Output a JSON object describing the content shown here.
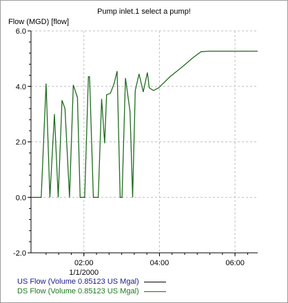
{
  "chart_data": {
    "type": "line",
    "title": "Pump inlet.1 select a pump!",
    "ylabel": "Flow (MGD) [flow]",
    "xlabel": "",
    "ylim": [
      -2.0,
      6.0
    ],
    "yticks": [
      -2.0,
      0.0,
      2.0,
      4.0,
      6.0
    ],
    "ytick_labels": [
      "-2.0",
      "0.0",
      "2.0",
      "4.0",
      "6.0"
    ],
    "xlim": [
      0.6,
      6.6
    ],
    "xticks": [
      2,
      4,
      6
    ],
    "xtick_labels": [
      "02:00",
      "04:00",
      "06:00"
    ],
    "x_date_label": "1/1/2000",
    "grid": true,
    "legend_position": "bottom",
    "series": [
      {
        "name": "US Flow (Volume 0.85123 US Mgal)",
        "color": "#000000",
        "label_color": "#1a1a8c",
        "x": [],
        "y": []
      },
      {
        "name": "DS Flow (Volume 0.85123 US Mgal)",
        "color": "#1d6b1d",
        "label_color": "#1d7a1d",
        "x": [
          0.6,
          0.87,
          1.0,
          1.1,
          1.22,
          1.32,
          1.42,
          1.5,
          1.62,
          1.72,
          1.83,
          1.9,
          2.02,
          2.12,
          2.15,
          2.25,
          2.32,
          2.38,
          2.47,
          2.55,
          2.6,
          2.7,
          2.8,
          2.88,
          2.96,
          3.01,
          3.1,
          3.22,
          3.29,
          3.36,
          3.46,
          3.57,
          3.68,
          3.73,
          3.84,
          3.98,
          4.28,
          4.6,
          4.9,
          5.1,
          5.3,
          5.8,
          6.6
        ],
        "y": [
          0.0,
          0.0,
          4.1,
          0.0,
          3.0,
          0.0,
          3.5,
          3.2,
          0.0,
          4.05,
          3.6,
          0.0,
          0.0,
          4.35,
          4.35,
          0.0,
          0.0,
          0.0,
          3.55,
          1.95,
          3.7,
          3.75,
          4.1,
          4.55,
          0.0,
          0.0,
          4.3,
          3.1,
          0.0,
          3.85,
          4.45,
          3.8,
          4.5,
          3.95,
          3.85,
          3.95,
          4.35,
          4.7,
          5.05,
          5.25,
          5.27,
          5.27,
          5.27
        ]
      }
    ]
  }
}
